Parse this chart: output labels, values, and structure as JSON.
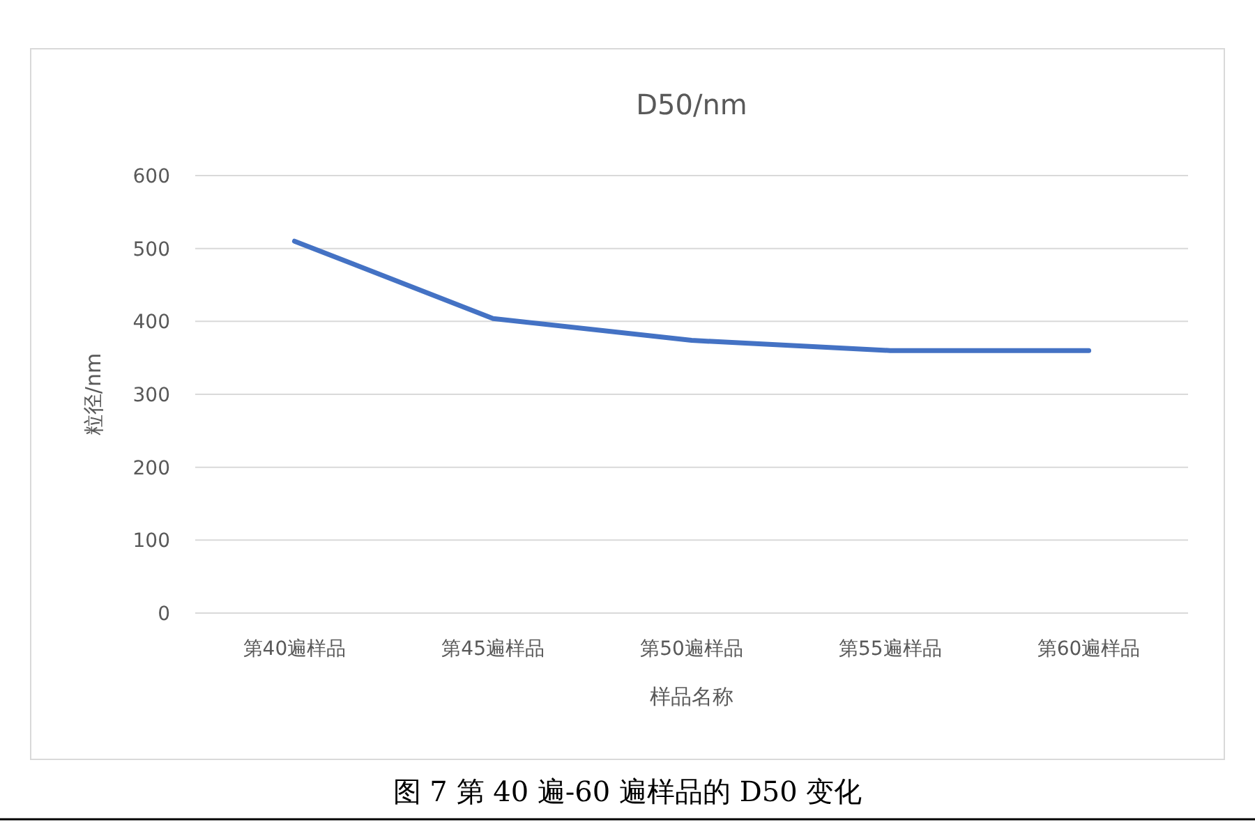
{
  "chart_data": {
    "type": "line",
    "title": "D50/nm",
    "xlabel": "样品名称",
    "ylabel": "粒径/nm",
    "categories": [
      "第40遍样品",
      "第45遍样品",
      "第50遍样品",
      "第55遍样品",
      "第60遍样品"
    ],
    "series": [
      {
        "color": "#4472c4",
        "values": [
          510,
          404,
          374,
          360,
          360
        ]
      }
    ],
    "ylim": [
      0,
      600
    ],
    "yticks": [
      0,
      100,
      200,
      300,
      400,
      500,
      600
    ],
    "grid": "y",
    "marker": "none",
    "line_style": "solid",
    "annotations": [
      "图 7 第 40 遍-60 遍样品的 D50 变化"
    ]
  }
}
